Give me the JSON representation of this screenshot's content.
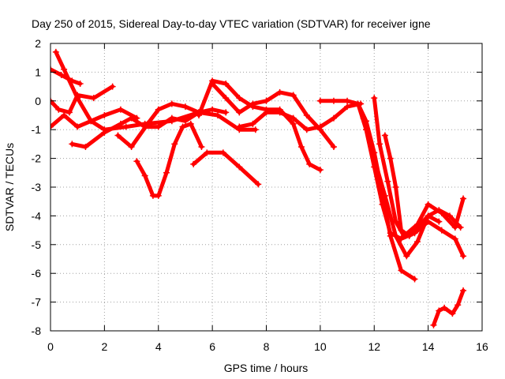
{
  "chart_data": {
    "type": "scatter",
    "title": "Day 250 of 2015, Sidereal Day-to-day VTEC variation (SDTVAR) for receiver igne",
    "xlabel": "GPS time / hours",
    "ylabel": "SDTVAR / TECUs",
    "xlim": [
      0,
      16
    ],
    "ylim": [
      -8,
      2
    ],
    "xticks": [
      "0",
      "2",
      "4",
      "6",
      "8",
      "10",
      "12",
      "14",
      "16"
    ],
    "yticks": [
      "2",
      "1",
      "0",
      "-1",
      "-2",
      "-3",
      "-4",
      "-5",
      "-6",
      "-7",
      "-8"
    ],
    "grid": true,
    "marker": "+",
    "color": "#ff0000",
    "series": [
      {
        "x": [
          0.2,
          0.5,
          1.0,
          1.5,
          2.0,
          2.8,
          3.5,
          4.5,
          5.5,
          6.2,
          7.0,
          7.6
        ],
        "y": [
          1.7,
          1.1,
          0.1,
          -0.7,
          -1.0,
          -0.9,
          -0.8,
          -0.7,
          -0.4,
          -0.5,
          -1.0,
          -1.0
        ]
      },
      {
        "x": [
          0.0,
          0.4,
          0.8,
          1.1
        ],
        "y": [
          1.1,
          0.9,
          0.7,
          0.6
        ]
      },
      {
        "x": [
          0.0,
          0.3,
          0.7,
          1.0,
          1.6,
          2.3
        ],
        "y": [
          0.0,
          -0.3,
          -0.4,
          0.2,
          0.1,
          0.5
        ]
      },
      {
        "x": [
          0.0,
          0.5,
          1.0,
          1.5,
          2.0,
          2.6,
          3.2
        ],
        "y": [
          -0.9,
          -0.5,
          -0.9,
          -0.7,
          -0.5,
          -0.3,
          -0.6
        ]
      },
      {
        "x": [
          0.8,
          1.3,
          2.0,
          2.6,
          3.0,
          3.5,
          4.0,
          4.5,
          5.0,
          5.5
        ],
        "y": [
          -1.5,
          -1.6,
          -1.1,
          -0.8,
          -0.6,
          -0.9,
          -0.9,
          -0.6,
          -0.7,
          -0.4
        ]
      },
      {
        "x": [
          2.5,
          3.0,
          3.6,
          4.0,
          4.5,
          5.0,
          5.5,
          6.0,
          6.5
        ],
        "y": [
          -1.2,
          -1.6,
          -0.8,
          -0.3,
          -0.1,
          -0.2,
          -0.4,
          -0.3,
          -0.4
        ]
      },
      {
        "x": [
          3.2,
          3.5,
          3.8,
          4.0,
          4.3,
          4.6,
          4.9,
          5.2,
          5.6
        ],
        "y": [
          -2.1,
          -2.6,
          -3.3,
          -3.3,
          -2.5,
          -1.5,
          -0.9,
          -0.8,
          -1.6
        ]
      },
      {
        "x": [
          5.3,
          5.8,
          6.4,
          7.0,
          7.7
        ],
        "y": [
          -2.2,
          -1.8,
          -1.8,
          -2.3,
          -2.9
        ]
      },
      {
        "x": [
          5.5,
          6.0,
          6.5,
          7.0,
          7.5,
          8.0,
          8.5,
          9.0,
          9.3,
          9.6,
          10.0
        ],
        "y": [
          -0.5,
          0.7,
          0.6,
          0.1,
          -0.2,
          -0.3,
          -0.3,
          -0.8,
          -1.6,
          -2.2,
          -2.4
        ]
      },
      {
        "x": [
          6.0,
          6.5,
          7.0,
          7.5,
          8.0,
          8.5,
          9.0,
          9.5,
          10.0,
          10.5
        ],
        "y": [
          0.6,
          0.1,
          -0.4,
          -0.1,
          0.0,
          0.3,
          0.2,
          -0.5,
          -1.0,
          -1.6
        ]
      },
      {
        "x": [
          7.0,
          7.5,
          8.0,
          8.5,
          9.0,
          9.5,
          10.0,
          10.5,
          11.0,
          11.5
        ],
        "y": [
          -0.9,
          -0.8,
          -0.4,
          -0.4,
          -0.6,
          -1.0,
          -0.9,
          -0.6,
          -0.2,
          -0.1
        ]
      },
      {
        "x": [
          10.0,
          10.5,
          11.0,
          11.4,
          11.7,
          12.0,
          12.3,
          12.6,
          13.0,
          13.5
        ],
        "y": [
          0.0,
          0.0,
          0.0,
          -0.1,
          -0.7,
          -1.8,
          -3.2,
          -4.7,
          -5.9,
          -6.2
        ]
      },
      {
        "x": [
          11.4,
          11.7,
          12.0,
          12.3,
          12.6,
          13.0,
          13.5,
          14.0,
          14.5,
          15.0,
          15.3
        ],
        "y": [
          -0.1,
          -1.0,
          -2.3,
          -3.6,
          -4.6,
          -4.8,
          -4.6,
          -4.2,
          -4.5,
          -4.8,
          -5.4
        ]
      },
      {
        "x": [
          11.6,
          12.0,
          12.4,
          12.8,
          13.2,
          13.6,
          14.0,
          14.4,
          14.8,
          15.2
        ],
        "y": [
          -0.6,
          -2.0,
          -3.3,
          -4.7,
          -5.4,
          -4.9,
          -4.0,
          -3.8,
          -4.0,
          -4.4
        ]
      },
      {
        "x": [
          12.0,
          12.2,
          12.5,
          12.8,
          13.1,
          13.6,
          14.0,
          14.5,
          15.0,
          15.3
        ],
        "y": [
          0.1,
          -1.5,
          -2.8,
          -4.2,
          -4.7,
          -4.3,
          -3.6,
          -3.9,
          -4.4,
          -3.4
        ]
      },
      {
        "x": [
          12.4,
          12.6,
          12.8,
          13.0,
          13.3,
          13.6,
          14.0,
          14.4
        ],
        "y": [
          -1.2,
          -2.0,
          -3.0,
          -4.5,
          -4.7,
          -4.4,
          -4.0,
          -4.2
        ]
      },
      {
        "x": [
          14.2,
          14.4,
          14.6,
          14.9,
          15.1,
          15.3
        ],
        "y": [
          -7.8,
          -7.3,
          -7.2,
          -7.4,
          -7.1,
          -6.6
        ]
      }
    ]
  }
}
